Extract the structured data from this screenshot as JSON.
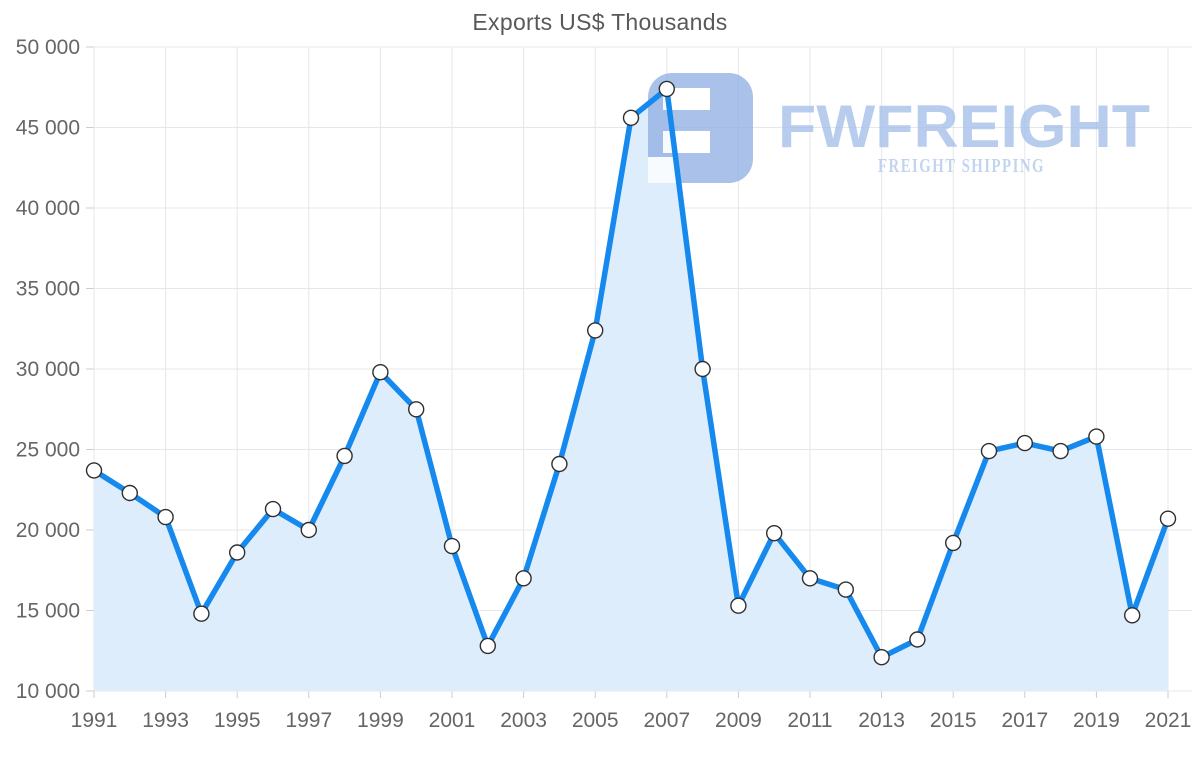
{
  "title": "Exports US$ Thousands",
  "watermark": {
    "brand": "FWFREIGHT",
    "tagline": "FREIGHT SHIPPING"
  },
  "colors": {
    "line": "#1589ee",
    "area_fill": "#ddedfc",
    "grid": "#e4e7eb",
    "tick": "#c9ced4",
    "axis_label": "#666666",
    "title": "#595959",
    "logo_icon": "#93b0e4",
    "logo_text": "#a5bfea",
    "logo_tagline": "#b3c8ed",
    "marker_fill": "#ffffff",
    "marker_stroke": "#2f2f2f"
  },
  "chart_data": {
    "type": "area",
    "title": "Exports US$ Thousands",
    "series_name": "Exports US$ Thousands",
    "x": [
      1991,
      1992,
      1993,
      1994,
      1995,
      1996,
      1997,
      1998,
      1999,
      2000,
      2001,
      2002,
      2003,
      2004,
      2005,
      2006,
      2007,
      2008,
      2009,
      2010,
      2011,
      2012,
      2013,
      2014,
      2015,
      2016,
      2017,
      2018,
      2019,
      2020,
      2021
    ],
    "values": [
      23700,
      22300,
      20800,
      14800,
      18600,
      21300,
      20000,
      24600,
      29800,
      27500,
      19000,
      12800,
      17000,
      24100,
      32400,
      45600,
      47400,
      30000,
      15300,
      19800,
      17000,
      16300,
      12100,
      13200,
      19200,
      24900,
      25400,
      24900,
      25800,
      14700,
      20700
    ],
    "ylim": [
      10000,
      50000
    ],
    "y_ticks": [
      10000,
      15000,
      20000,
      25000,
      30000,
      35000,
      40000,
      45000,
      50000
    ],
    "y_tick_labels": [
      "10 000",
      "15 000",
      "20 000",
      "25 000",
      "30 000",
      "35 000",
      "40 000",
      "45 000",
      "50 000"
    ],
    "x_tick_labels": [
      "1991",
      "1993",
      "1995",
      "1997",
      "1999",
      "2001",
      "2003",
      "2005",
      "2007",
      "2009",
      "2011",
      "2013",
      "2015",
      "2017",
      "2019",
      "2021"
    ],
    "grid": true,
    "legend": false,
    "markers": true,
    "xlabel": "",
    "ylabel": ""
  }
}
